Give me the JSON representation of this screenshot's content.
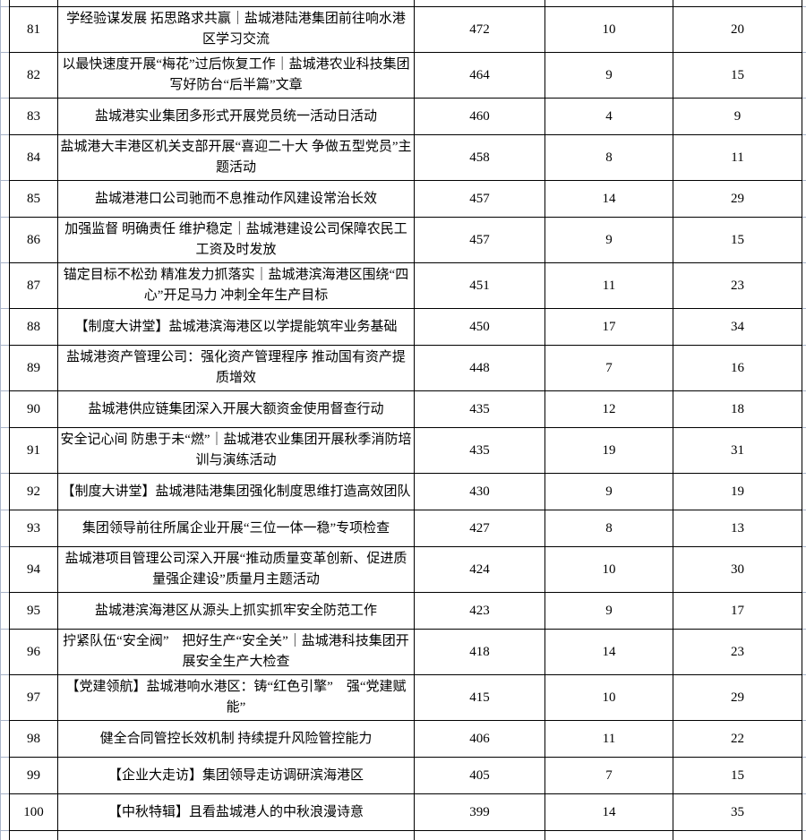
{
  "colors": {
    "table_border": "#000000",
    "excel_gridline": "#a9b4c9",
    "text": "#000000",
    "background": "#ffffff"
  },
  "table": {
    "rows": [
      {
        "no": "81",
        "title": "学经验谋发展 拓思路求共赢｜盐城港陆港集团前往响水港区学习交流",
        "v1": "472",
        "v2": "10",
        "v3": "20"
      },
      {
        "no": "82",
        "title": "以最快速度开展“梅花”过后恢复工作｜盐城港农业科技集团写好防台“后半篇”文章",
        "v1": "464",
        "v2": "9",
        "v3": "15"
      },
      {
        "no": "83",
        "title": "盐城港实业集团多形式开展党员统一活动日活动",
        "v1": "460",
        "v2": "4",
        "v3": "9"
      },
      {
        "no": "84",
        "title": "盐城港大丰港区机关支部开展“喜迎二十大 争做五型党员”主题活动",
        "v1": "458",
        "v2": "8",
        "v3": "11"
      },
      {
        "no": "85",
        "title": "盐城港港口公司驰而不息推动作风建设常治长效",
        "v1": "457",
        "v2": "14",
        "v3": "29"
      },
      {
        "no": "86",
        "title": "加强监督 明确责任 维护稳定｜盐城港建设公司保障农民工工资及时发放",
        "v1": "457",
        "v2": "9",
        "v3": "15"
      },
      {
        "no": "87",
        "title": "锚定目标不松劲 精准发力抓落实｜盐城港滨海港区围绕“四心”开足马力 冲刺全年生产目标",
        "v1": "451",
        "v2": "11",
        "v3": "23"
      },
      {
        "no": "88",
        "title": "【制度大讲堂】盐城港滨海港区以学提能筑牢业务基础",
        "v1": "450",
        "v2": "17",
        "v3": "34"
      },
      {
        "no": "89",
        "title": "盐城港资产管理公司：强化资产管理程序 推动国有资产提质增效",
        "v1": "448",
        "v2": "7",
        "v3": "16"
      },
      {
        "no": "90",
        "title": "盐城港供应链集团深入开展大额资金使用督查行动",
        "v1": "435",
        "v2": "12",
        "v3": "18"
      },
      {
        "no": "91",
        "title": "安全记心间 防患于未“燃”｜盐城港农业集团开展秋季消防培训与演练活动",
        "v1": "435",
        "v2": "19",
        "v3": "31"
      },
      {
        "no": "92",
        "title": "【制度大讲堂】盐城港陆港集团强化制度思维打造高效团队",
        "v1": "430",
        "v2": "9",
        "v3": "19"
      },
      {
        "no": "93",
        "title": "集团领导前往所属企业开展“三位一体一稳”专项检查",
        "v1": "427",
        "v2": "8",
        "v3": "13"
      },
      {
        "no": "94",
        "title": "盐城港项目管理公司深入开展“推动质量变革创新、促进质量强企建设”质量月主题活动",
        "v1": "424",
        "v2": "10",
        "v3": "30"
      },
      {
        "no": "95",
        "title": "盐城港滨海港区从源头上抓实抓牢安全防范工作",
        "v1": "423",
        "v2": "9",
        "v3": "17"
      },
      {
        "no": "96",
        "title": "拧紧队伍“安全阀”　把好生产“安全关”｜盐城港科技集团开展安全生产大检查",
        "v1": "418",
        "v2": "14",
        "v3": "23"
      },
      {
        "no": "97",
        "title": "【党建领航】盐城港响水港区：铸“红色引擎”　强“党建赋能”",
        "v1": "415",
        "v2": "10",
        "v3": "29"
      },
      {
        "no": "98",
        "title": "健全合同管控长效机制 持续提升风险管控能力",
        "v1": "406",
        "v2": "11",
        "v3": "22"
      },
      {
        "no": "99",
        "title": "【企业大走访】集团领导走访调研滨海港区",
        "v1": "405",
        "v2": "7",
        "v3": "15"
      },
      {
        "no": "100",
        "title": "【中秋特辑】且看盐城港人的中秋浪漫诗意",
        "v1": "399",
        "v2": "14",
        "v3": "35"
      }
    ]
  }
}
